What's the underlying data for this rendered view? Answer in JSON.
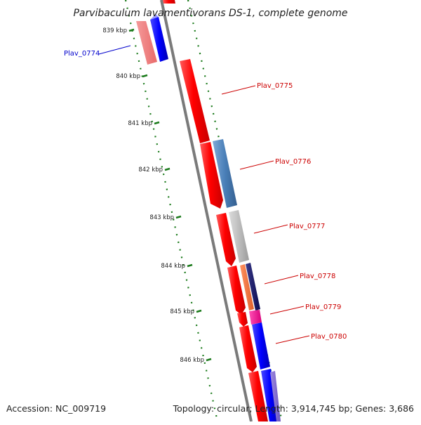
{
  "title": "Parvibaculum lavamentivorans DS-1, complete genome",
  "footer": {
    "accession": "Accession: NC_009719",
    "topology": "Topology: circular; Length: 3,914,745 bp; Genes: 3,686"
  },
  "colors": {
    "forward_gene": "#ff0000",
    "label_red": "#cc0000",
    "label_blue": "#0000cc",
    "tick_green": "#1a7a1a",
    "backbone": "#7a7a7a"
  },
  "scale_ticks": [
    {
      "label": "839 kbp",
      "kbp": 839
    },
    {
      "label": "840 kbp",
      "kbp": 840
    },
    {
      "label": "841 kbp",
      "kbp": 841
    },
    {
      "label": "842 kbp",
      "kbp": 842
    },
    {
      "label": "843 kbp",
      "kbp": 843
    },
    {
      "label": "844 kbp",
      "kbp": 844
    },
    {
      "label": "845 kbp",
      "kbp": 845
    },
    {
      "label": "846 kbp",
      "kbp": 846
    }
  ],
  "genes": [
    {
      "name": "Plav_0774",
      "label_color": "#0000cc",
      "strand": "reverse"
    },
    {
      "name": "Plav_0775",
      "label_color": "#cc0000",
      "strand": "forward"
    },
    {
      "name": "Plav_0776",
      "label_color": "#cc0000",
      "strand": "forward"
    },
    {
      "name": "Plav_0777",
      "label_color": "#cc0000",
      "strand": "forward"
    },
    {
      "name": "Plav_0778",
      "label_color": "#cc0000",
      "strand": "forward"
    },
    {
      "name": "Plav_0779",
      "label_color": "#cc0000",
      "strand": "forward"
    },
    {
      "name": "Plav_0780",
      "label_color": "#cc0000",
      "strand": "forward"
    }
  ]
}
